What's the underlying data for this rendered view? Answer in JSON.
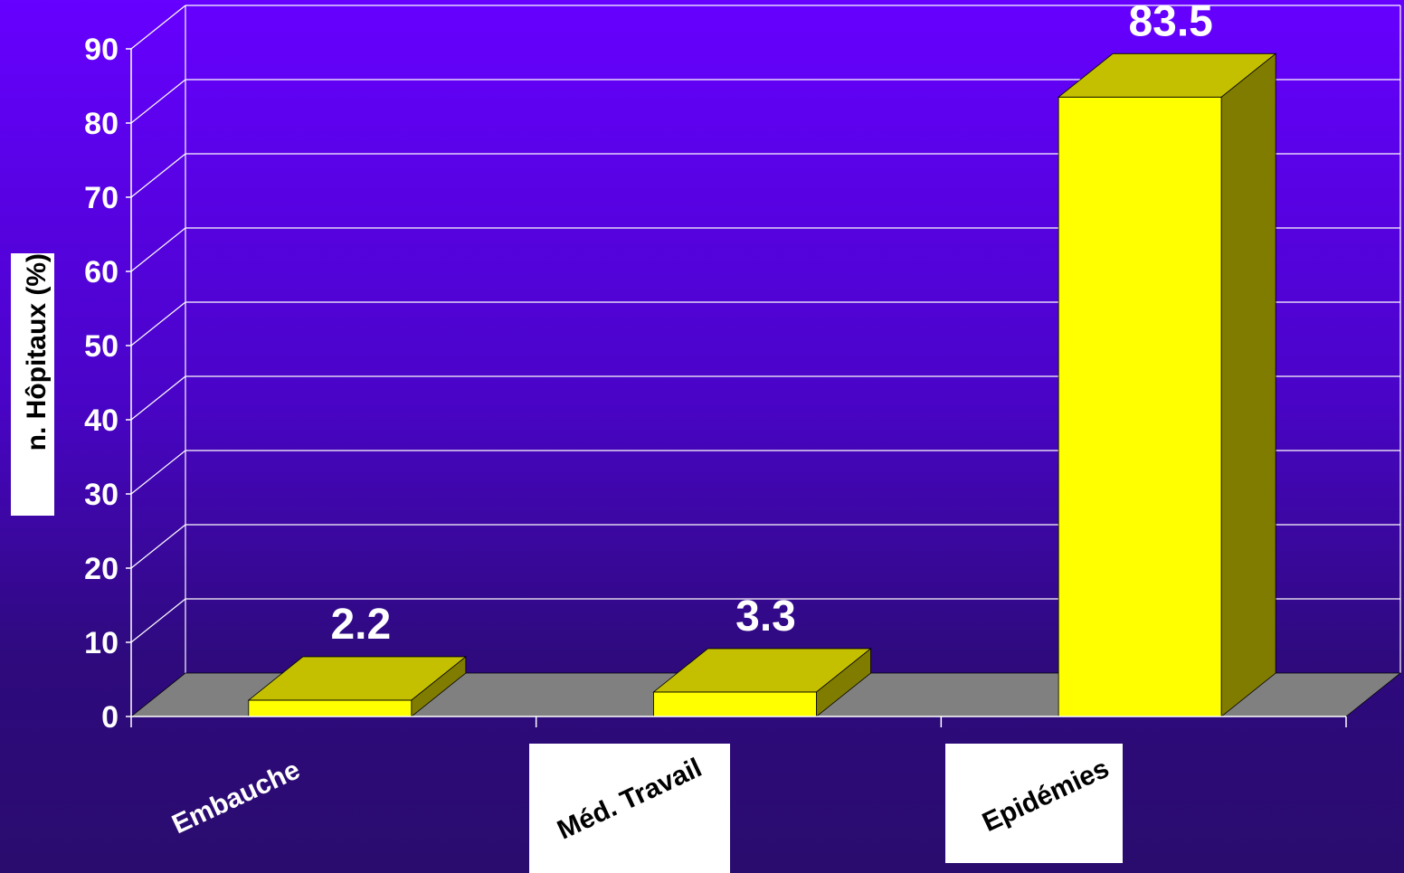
{
  "chart_data": {
    "type": "bar",
    "title": "",
    "ylabel": "n. Hôpitaux (%)",
    "xlabel": "",
    "categories": [
      "Embauche",
      "Méd. Travail",
      "Epidémies"
    ],
    "values": [
      2.2,
      3.3,
      83.5
    ],
    "ylim": [
      0,
      90
    ],
    "yticks": [
      0,
      10,
      20,
      30,
      40,
      50,
      60,
      70,
      80,
      90
    ],
    "grid": true,
    "three_d": true,
    "colors": {
      "bar_front": "#ffff00",
      "bar_top": "#c4c000",
      "bar_side": "#807c00",
      "floor": "#808080",
      "grid": "#ffffff",
      "text": "#ffffff"
    }
  }
}
